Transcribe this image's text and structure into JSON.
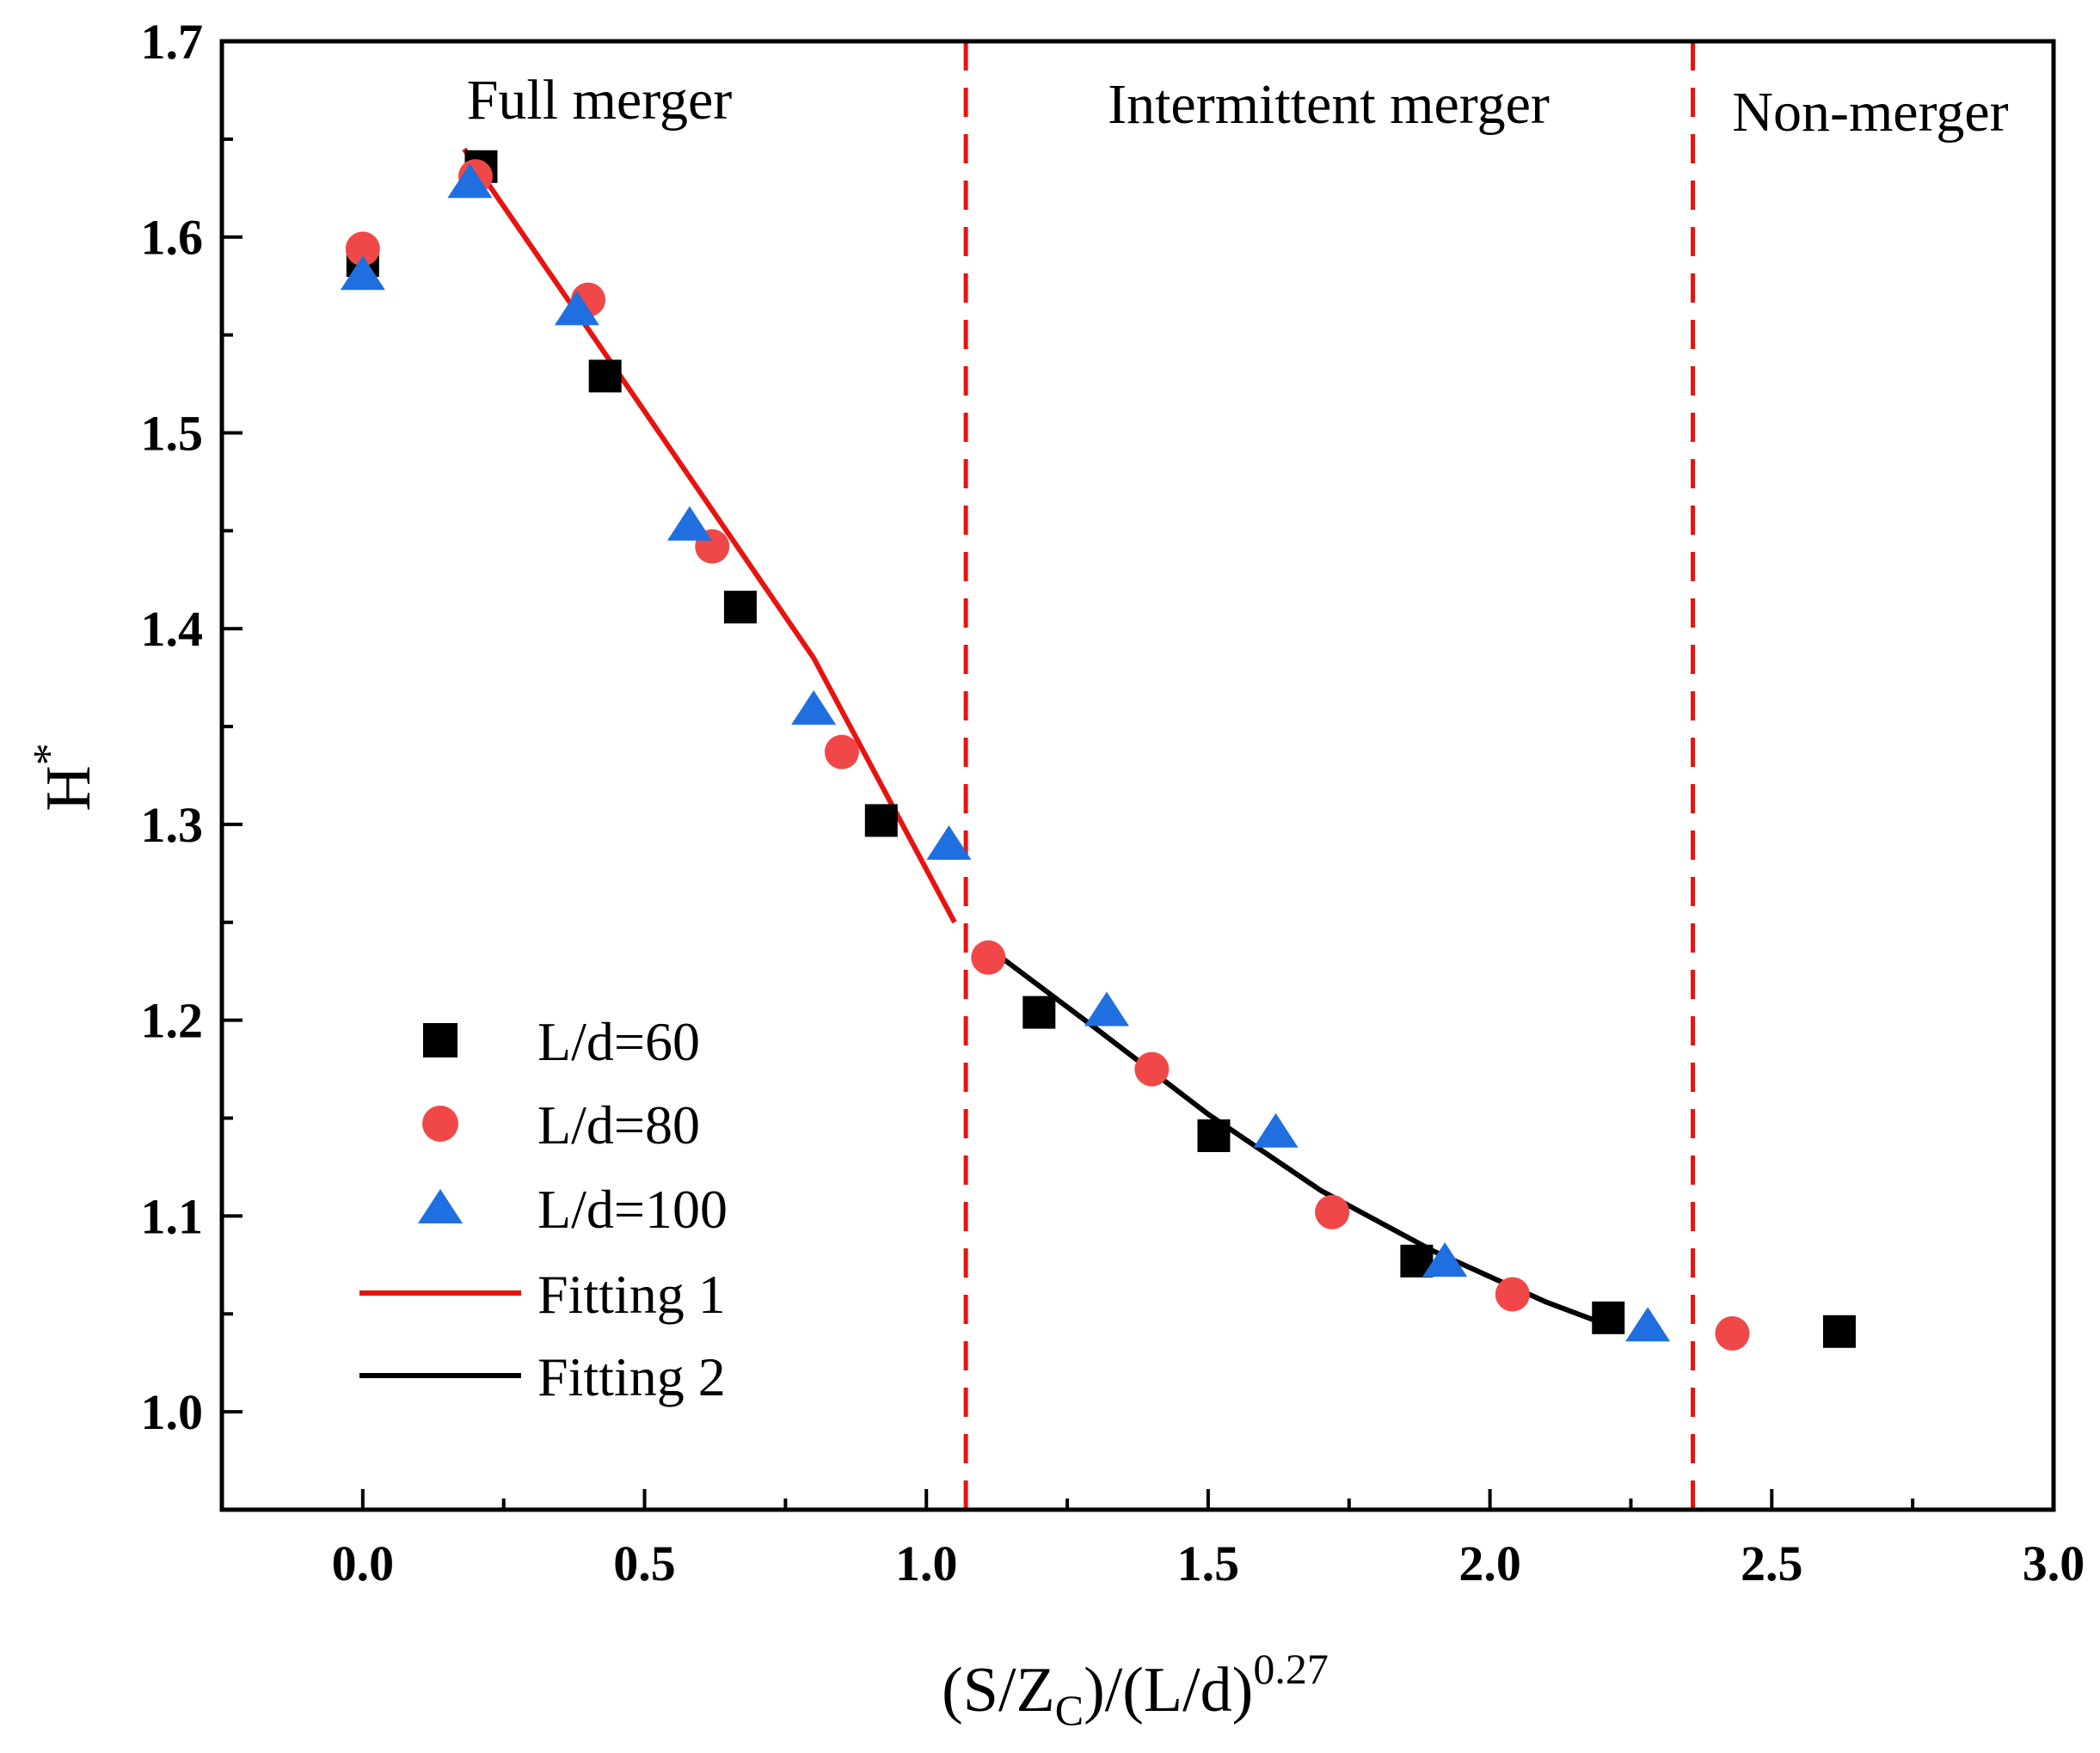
{
  "chart_data": {
    "type": "scatter",
    "xlabel": {
      "base": "(S/Z",
      "sub": "C",
      "mid": ")/(L/d)",
      "sup": "0.27"
    },
    "ylabel": {
      "base": "H",
      "sup": "*"
    },
    "xlim": [
      -0.25,
      3.0
    ],
    "ylim": [
      0.95,
      1.7
    ],
    "x_ticks": [
      0.0,
      0.5,
      1.0,
      1.5,
      2.0,
      2.5,
      3.0
    ],
    "x_tick_labels": [
      "0.0",
      "0.5",
      "1.0",
      "1.5",
      "2.0",
      "2.5",
      "3.0"
    ],
    "y_ticks": [
      1.0,
      1.1,
      1.2,
      1.3,
      1.4,
      1.5,
      1.6,
      1.7
    ],
    "y_tick_labels": [
      "1.0",
      "1.1",
      "1.2",
      "1.3",
      "1.4",
      "1.5",
      "1.6",
      "1.7"
    ],
    "grid": false,
    "legend_position": "bottom-left",
    "series": [
      {
        "name": "L/d=60",
        "marker": "square",
        "color": "#000000",
        "points": [
          [
            0.0,
            1.588
          ],
          [
            0.21,
            1.636
          ],
          [
            0.43,
            1.529
          ],
          [
            0.67,
            1.411
          ],
          [
            0.92,
            1.302
          ],
          [
            1.2,
            1.204
          ],
          [
            1.51,
            1.141
          ],
          [
            1.87,
            1.077
          ],
          [
            2.21,
            1.048
          ],
          [
            2.62,
            1.041
          ]
        ]
      },
      {
        "name": "L/d=80",
        "marker": "circle",
        "color": "#f04848",
        "points": [
          [
            0.0,
            1.594
          ],
          [
            0.2,
            1.631
          ],
          [
            0.4,
            1.568
          ],
          [
            0.62,
            1.442
          ],
          [
            0.85,
            1.337
          ],
          [
            1.11,
            1.232
          ],
          [
            1.4,
            1.175
          ],
          [
            1.72,
            1.102
          ],
          [
            2.04,
            1.06
          ],
          [
            2.43,
            1.04
          ]
        ]
      },
      {
        "name": "L/d=100",
        "marker": "triangle",
        "color": "#1f6fe0",
        "points": [
          [
            0.0,
            1.58
          ],
          [
            0.19,
            1.627
          ],
          [
            0.38,
            1.562
          ],
          [
            0.58,
            1.452
          ],
          [
            0.8,
            1.358
          ],
          [
            1.04,
            1.289
          ],
          [
            1.32,
            1.204
          ],
          [
            1.62,
            1.142
          ],
          [
            1.92,
            1.076
          ],
          [
            2.28,
            1.043
          ]
        ]
      },
      {
        "name": "Fitting 1",
        "type": "line",
        "color": "#e8130f",
        "points": [
          [
            0.18,
            1.645
          ],
          [
            0.4,
            1.553
          ],
          [
            0.6,
            1.469
          ],
          [
            0.8,
            1.385
          ],
          [
            1.05,
            1.25
          ]
        ]
      },
      {
        "name": "Fitting 2",
        "type": "line",
        "color": "#000000",
        "points": [
          [
            1.11,
            1.237
          ],
          [
            1.3,
            1.196
          ],
          [
            1.5,
            1.152
          ],
          [
            1.7,
            1.113
          ],
          [
            1.9,
            1.082
          ],
          [
            2.1,
            1.056
          ],
          [
            2.23,
            1.042
          ]
        ]
      }
    ],
    "dividers": [
      {
        "x": 1.07,
        "color": "#e8130f",
        "style": "dashed"
      },
      {
        "x": 2.36,
        "color": "#e8130f",
        "style": "dashed"
      }
    ],
    "annotations": [
      {
        "text": "Full merger"
      },
      {
        "text": "Intermittent merger"
      },
      {
        "text": "Non-merger"
      }
    ]
  }
}
